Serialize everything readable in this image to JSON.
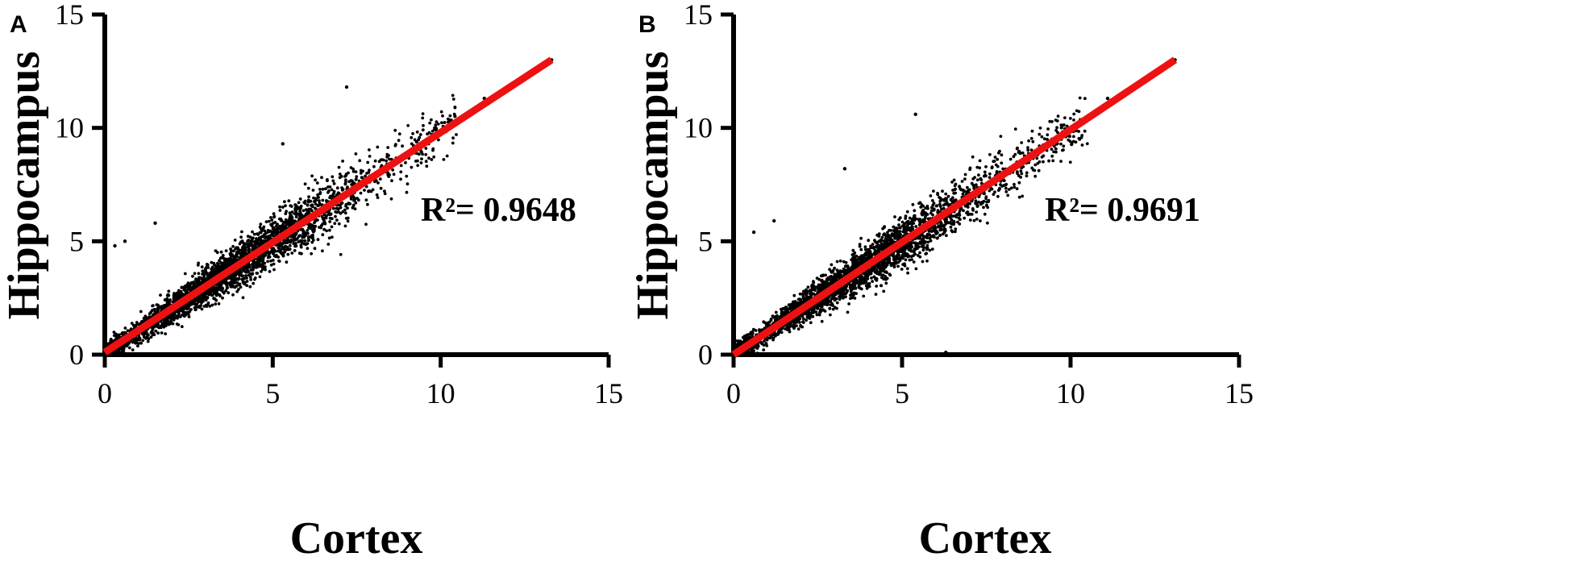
{
  "chart_data": [
    {
      "type": "scatter",
      "panel": "A",
      "xlabel": "Cortex",
      "ylabel": "Hippocampus",
      "xlim": [
        0,
        15
      ],
      "ylim": [
        0,
        15
      ],
      "xticks": [
        "0",
        "5",
        "10",
        "15"
      ],
      "yticks": [
        "0",
        "5",
        "10",
        "15"
      ],
      "annotation": "R²= 0.9648",
      "grid": false,
      "point_color": "#000000",
      "fit_color": "#ee1111",
      "fit_line": {
        "x": [
          0,
          13.3
        ],
        "y": [
          0.1,
          13.0
        ]
      },
      "seed": 17,
      "outliers": [
        {
          "x": 7.2,
          "y": 11.8
        },
        {
          "x": 5.3,
          "y": 9.3
        },
        {
          "x": 1.5,
          "y": 5.8
        },
        {
          "x": 0.6,
          "y": 5.0
        },
        {
          "x": 0.3,
          "y": 4.8
        },
        {
          "x": 11.3,
          "y": 11.3
        },
        {
          "x": 13.3,
          "y": 13.0
        }
      ]
    },
    {
      "type": "scatter",
      "panel": "B",
      "xlabel": "Cortex",
      "ylabel": "Hippocampus",
      "xlim": [
        0,
        15
      ],
      "ylim": [
        0,
        15
      ],
      "xticks": [
        "0",
        "5",
        "10",
        "15"
      ],
      "yticks": [
        "0",
        "5",
        "10",
        "15"
      ],
      "annotation": "R²= 0.9691",
      "grid": false,
      "point_color": "#000000",
      "fit_color": "#ee1111",
      "fit_line": {
        "x": [
          0,
          13.1
        ],
        "y": [
          0.0,
          13.0
        ]
      },
      "seed": 29,
      "outliers": [
        {
          "x": 5.4,
          "y": 10.6
        },
        {
          "x": 3.3,
          "y": 8.2
        },
        {
          "x": 1.2,
          "y": 5.9
        },
        {
          "x": 0.6,
          "y": 5.4
        },
        {
          "x": 6.3,
          "y": 0.1
        },
        {
          "x": 11.1,
          "y": 11.3
        },
        {
          "x": 13.1,
          "y": 13.0
        }
      ]
    }
  ]
}
